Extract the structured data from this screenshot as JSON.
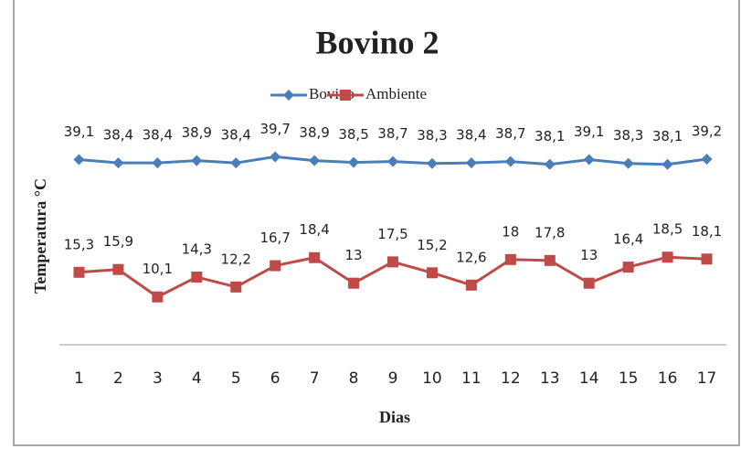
{
  "chart_data": {
    "type": "line",
    "title": "Bovino 2",
    "x_label": "Dias",
    "y_label": "Temperatura °C",
    "categories": [
      "1",
      "2",
      "3",
      "4",
      "5",
      "6",
      "7",
      "8",
      "9",
      "10",
      "11",
      "12",
      "13",
      "14",
      "15",
      "16",
      "17"
    ],
    "series": [
      {
        "name": "Bovino",
        "color": "#4a7ebb",
        "marker": "diamond",
        "values": [
          39.1,
          38.4,
          38.4,
          38.9,
          38.4,
          39.7,
          38.9,
          38.5,
          38.7,
          38.3,
          38.4,
          38.7,
          38.1,
          39.1,
          38.3,
          38.1,
          39.2
        ],
        "value_labels": [
          "39,1",
          "38,4",
          "38,4",
          "38,9",
          "38,4",
          "39,7",
          "38,9",
          "38,5",
          "38,7",
          "38,3",
          "38,4",
          "38,7",
          "38,1",
          "39,1",
          "38,3",
          "38,1",
          "39,2"
        ]
      },
      {
        "name": "Ambiente",
        "color": "#be4b48",
        "marker": "square",
        "values": [
          15.3,
          15.9,
          10.1,
          14.3,
          12.2,
          16.7,
          18.4,
          13,
          17.5,
          15.2,
          12.6,
          18,
          17.8,
          13,
          16.4,
          18.5,
          18.1
        ],
        "value_labels": [
          "15,3",
          "15,9",
          "10,1",
          "14,3",
          "12,2",
          "16,7",
          "18,4",
          "13",
          "17,5",
          "15,2",
          "12,6",
          "18",
          "17,8",
          "13",
          "16,4",
          "18,5",
          "18,1"
        ]
      }
    ],
    "ylim": [
      0,
      45
    ],
    "legend": "top"
  }
}
